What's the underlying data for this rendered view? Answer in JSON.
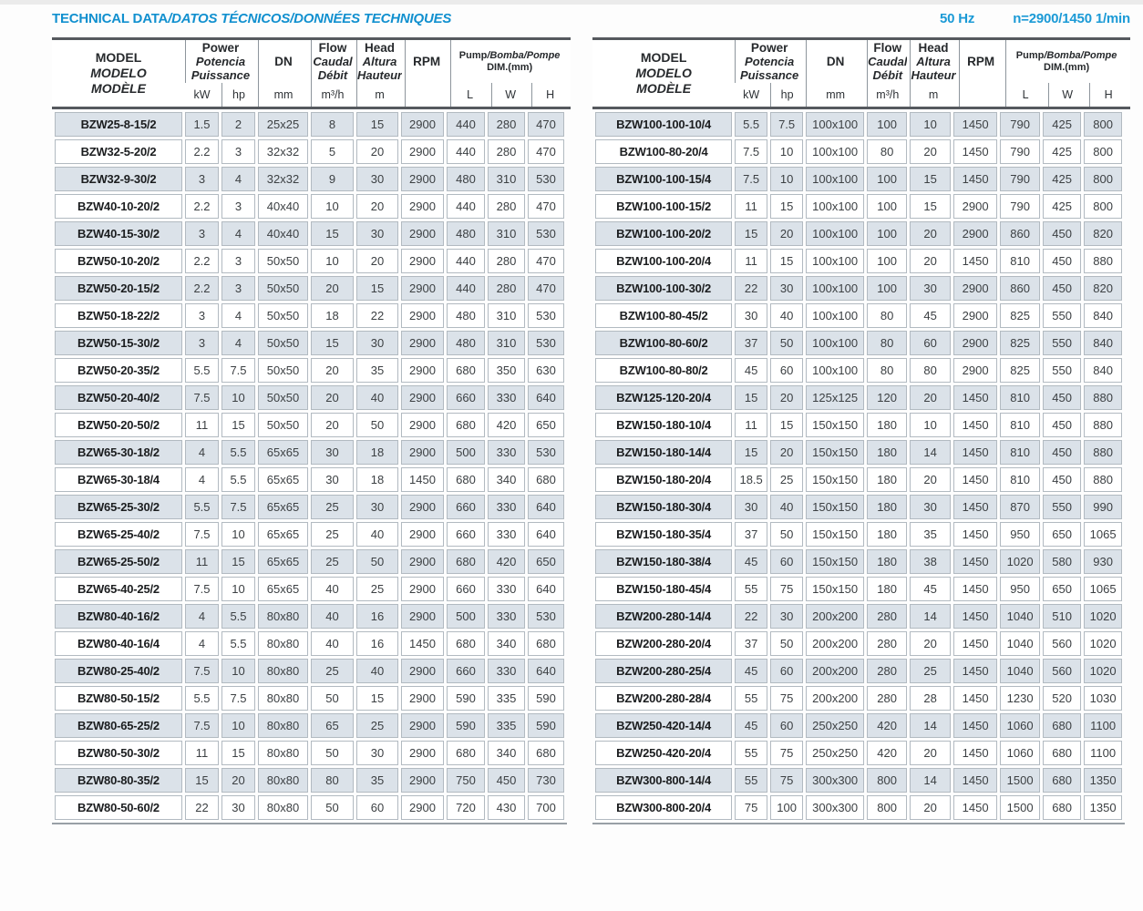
{
  "title": {
    "main": "TECHNICAL DATA",
    "rest": "/DATOS TÉCNICOS/DONNÉES TECHNIQUES"
  },
  "frequency_note": {
    "hz": "50 Hz",
    "speed": "n=2900/1450 1/min"
  },
  "colors": {
    "accent_blue": "#1190cf",
    "row_shade": "#dbe2e9",
    "cell_border": "#b2bac1",
    "header_rule": "#55595e"
  },
  "header": {
    "model": [
      "MODEL",
      "MODELO",
      "MODÈLE"
    ],
    "power": [
      "Power",
      "Potencia",
      "Puissance"
    ],
    "power_units": [
      "kW",
      "hp"
    ],
    "dn_label": "DN",
    "dn_unit": "mm",
    "flow": [
      "Flow",
      "Caudal",
      "Débit"
    ],
    "flow_unit": "m³/h",
    "head": [
      "Head",
      "Altura",
      "Hauteur"
    ],
    "head_unit": "m",
    "rpm_label": "RPM",
    "rpm_unit": "",
    "dim_line1_main": "Pump",
    "dim_line1_rest": "/Bomba/Pompe",
    "dim_line2": "DIM.(mm)",
    "dim_units": [
      "L",
      "W",
      "H"
    ]
  },
  "tables": {
    "left": {
      "rows": [
        [
          "BZW25-8-15/2",
          "1.5",
          "2",
          "25x25",
          "8",
          "15",
          "2900",
          "440",
          "280",
          "470"
        ],
        [
          "BZW32-5-20/2",
          "2.2",
          "3",
          "32x32",
          "5",
          "20",
          "2900",
          "440",
          "280",
          "470"
        ],
        [
          "BZW32-9-30/2",
          "3",
          "4",
          "32x32",
          "9",
          "30",
          "2900",
          "480",
          "310",
          "530"
        ],
        [
          "BZW40-10-20/2",
          "2.2",
          "3",
          "40x40",
          "10",
          "20",
          "2900",
          "440",
          "280",
          "470"
        ],
        [
          "BZW40-15-30/2",
          "3",
          "4",
          "40x40",
          "15",
          "30",
          "2900",
          "480",
          "310",
          "530"
        ],
        [
          "BZW50-10-20/2",
          "2.2",
          "3",
          "50x50",
          "10",
          "20",
          "2900",
          "440",
          "280",
          "470"
        ],
        [
          "BZW50-20-15/2",
          "2.2",
          "3",
          "50x50",
          "20",
          "15",
          "2900",
          "440",
          "280",
          "470"
        ],
        [
          "BZW50-18-22/2",
          "3",
          "4",
          "50x50",
          "18",
          "22",
          "2900",
          "480",
          "310",
          "530"
        ],
        [
          "BZW50-15-30/2",
          "3",
          "4",
          "50x50",
          "15",
          "30",
          "2900",
          "480",
          "310",
          "530"
        ],
        [
          "BZW50-20-35/2",
          "5.5",
          "7.5",
          "50x50",
          "20",
          "35",
          "2900",
          "680",
          "350",
          "630"
        ],
        [
          "BZW50-20-40/2",
          "7.5",
          "10",
          "50x50",
          "20",
          "40",
          "2900",
          "660",
          "330",
          "640"
        ],
        [
          "BZW50-20-50/2",
          "11",
          "15",
          "50x50",
          "20",
          "50",
          "2900",
          "680",
          "420",
          "650"
        ],
        [
          "BZW65-30-18/2",
          "4",
          "5.5",
          "65x65",
          "30",
          "18",
          "2900",
          "500",
          "330",
          "530"
        ],
        [
          "BZW65-30-18/4",
          "4",
          "5.5",
          "65x65",
          "30",
          "18",
          "1450",
          "680",
          "340",
          "680"
        ],
        [
          "BZW65-25-30/2",
          "5.5",
          "7.5",
          "65x65",
          "25",
          "30",
          "2900",
          "660",
          "330",
          "640"
        ],
        [
          "BZW65-25-40/2",
          "7.5",
          "10",
          "65x65",
          "25",
          "40",
          "2900",
          "660",
          "330",
          "640"
        ],
        [
          "BZW65-25-50/2",
          "11",
          "15",
          "65x65",
          "25",
          "50",
          "2900",
          "680",
          "420",
          "650"
        ],
        [
          "BZW65-40-25/2",
          "7.5",
          "10",
          "65x65",
          "40",
          "25",
          "2900",
          "660",
          "330",
          "640"
        ],
        [
          "BZW80-40-16/2",
          "4",
          "5.5",
          "80x80",
          "40",
          "16",
          "2900",
          "500",
          "330",
          "530"
        ],
        [
          "BZW80-40-16/4",
          "4",
          "5.5",
          "80x80",
          "40",
          "16",
          "1450",
          "680",
          "340",
          "680"
        ],
        [
          "BZW80-25-40/2",
          "7.5",
          "10",
          "80x80",
          "25",
          "40",
          "2900",
          "660",
          "330",
          "640"
        ],
        [
          "BZW80-50-15/2",
          "5.5",
          "7.5",
          "80x80",
          "50",
          "15",
          "2900",
          "590",
          "335",
          "590"
        ],
        [
          "BZW80-65-25/2",
          "7.5",
          "10",
          "80x80",
          "65",
          "25",
          "2900",
          "590",
          "335",
          "590"
        ],
        [
          "BZW80-50-30/2",
          "11",
          "15",
          "80x80",
          "50",
          "30",
          "2900",
          "680",
          "340",
          "680"
        ],
        [
          "BZW80-80-35/2",
          "15",
          "20",
          "80x80",
          "80",
          "35",
          "2900",
          "750",
          "450",
          "730"
        ],
        [
          "BZW80-50-60/2",
          "22",
          "30",
          "80x80",
          "50",
          "60",
          "2900",
          "720",
          "430",
          "700"
        ]
      ]
    },
    "right": {
      "rows": [
        [
          "BZW100-100-10/4",
          "5.5",
          "7.5",
          "100x100",
          "100",
          "10",
          "1450",
          "790",
          "425",
          "800"
        ],
        [
          "BZW100-80-20/4",
          "7.5",
          "10",
          "100x100",
          "80",
          "20",
          "1450",
          "790",
          "425",
          "800"
        ],
        [
          "BZW100-100-15/4",
          "7.5",
          "10",
          "100x100",
          "100",
          "15",
          "1450",
          "790",
          "425",
          "800"
        ],
        [
          "BZW100-100-15/2",
          "11",
          "15",
          "100x100",
          "100",
          "15",
          "2900",
          "790",
          "425",
          "800"
        ],
        [
          "BZW100-100-20/2",
          "15",
          "20",
          "100x100",
          "100",
          "20",
          "2900",
          "860",
          "450",
          "820"
        ],
        [
          "BZW100-100-20/4",
          "11",
          "15",
          "100x100",
          "100",
          "20",
          "1450",
          "810",
          "450",
          "880"
        ],
        [
          "BZW100-100-30/2",
          "22",
          "30",
          "100x100",
          "100",
          "30",
          "2900",
          "860",
          "450",
          "820"
        ],
        [
          "BZW100-80-45/2",
          "30",
          "40",
          "100x100",
          "80",
          "45",
          "2900",
          "825",
          "550",
          "840"
        ],
        [
          "BZW100-80-60/2",
          "37",
          "50",
          "100x100",
          "80",
          "60",
          "2900",
          "825",
          "550",
          "840"
        ],
        [
          "BZW100-80-80/2",
          "45",
          "60",
          "100x100",
          "80",
          "80",
          "2900",
          "825",
          "550",
          "840"
        ],
        [
          "BZW125-120-20/4",
          "15",
          "20",
          "125x125",
          "120",
          "20",
          "1450",
          "810",
          "450",
          "880"
        ],
        [
          "BZW150-180-10/4",
          "11",
          "15",
          "150x150",
          "180",
          "10",
          "1450",
          "810",
          "450",
          "880"
        ],
        [
          "BZW150-180-14/4",
          "15",
          "20",
          "150x150",
          "180",
          "14",
          "1450",
          "810",
          "450",
          "880"
        ],
        [
          "BZW150-180-20/4",
          "18.5",
          "25",
          "150x150",
          "180",
          "20",
          "1450",
          "810",
          "450",
          "880"
        ],
        [
          "BZW150-180-30/4",
          "30",
          "40",
          "150x150",
          "180",
          "30",
          "1450",
          "870",
          "550",
          "990"
        ],
        [
          "BZW150-180-35/4",
          "37",
          "50",
          "150x150",
          "180",
          "35",
          "1450",
          "950",
          "650",
          "1065"
        ],
        [
          "BZW150-180-38/4",
          "45",
          "60",
          "150x150",
          "180",
          "38",
          "1450",
          "1020",
          "580",
          "930"
        ],
        [
          "BZW150-180-45/4",
          "55",
          "75",
          "150x150",
          "180",
          "45",
          "1450",
          "950",
          "650",
          "1065"
        ],
        [
          "BZW200-280-14/4",
          "22",
          "30",
          "200x200",
          "280",
          "14",
          "1450",
          "1040",
          "510",
          "1020"
        ],
        [
          "BZW200-280-20/4",
          "37",
          "50",
          "200x200",
          "280",
          "20",
          "1450",
          "1040",
          "560",
          "1020"
        ],
        [
          "BZW200-280-25/4",
          "45",
          "60",
          "200x200",
          "280",
          "25",
          "1450",
          "1040",
          "560",
          "1020"
        ],
        [
          "BZW200-280-28/4",
          "55",
          "75",
          "200x200",
          "280",
          "28",
          "1450",
          "1230",
          "520",
          "1030"
        ],
        [
          "BZW250-420-14/4",
          "45",
          "60",
          "250x250",
          "420",
          "14",
          "1450",
          "1060",
          "680",
          "1100"
        ],
        [
          "BZW250-420-20/4",
          "55",
          "75",
          "250x250",
          "420",
          "20",
          "1450",
          "1060",
          "680",
          "1100"
        ],
        [
          "BZW300-800-14/4",
          "55",
          "75",
          "300x300",
          "800",
          "14",
          "1450",
          "1500",
          "680",
          "1350"
        ],
        [
          "BZW300-800-20/4",
          "75",
          "100",
          "300x300",
          "800",
          "20",
          "1450",
          "1500",
          "680",
          "1350"
        ]
      ]
    }
  }
}
